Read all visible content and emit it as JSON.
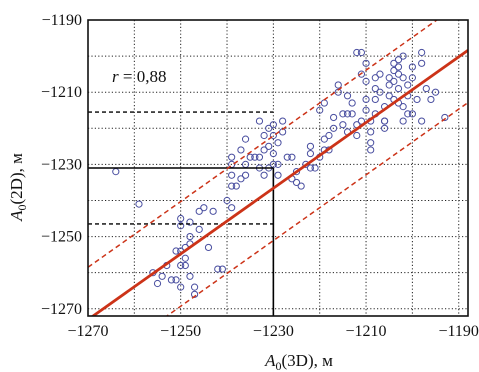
{
  "chart_data": {
    "type": "scatter",
    "title": "",
    "xlabel": {
      "main": "A",
      "sub": "0",
      "rest": "(3D), м"
    },
    "ylabel": {
      "main": "A",
      "sub": "0",
      "rest": "(2D), м"
    },
    "xlim": [
      -1270,
      -1188
    ],
    "ylim": [
      -1272,
      -1190
    ],
    "xticks": [
      -1270,
      -1250,
      -1230,
      -1210,
      -1190
    ],
    "yticks": [
      -1190,
      -1210,
      -1230,
      -1250,
      -1270
    ],
    "xtick_labels": [
      "−1270",
      "−1250",
      "−1230",
      "−1210",
      "−1190"
    ],
    "ytick_labels": [
      "−1190",
      "−1210",
      "−1230",
      "−1250",
      "−1270"
    ],
    "grid": "dotted",
    "annotation": {
      "symbol": "r",
      "text": " = 0,88"
    },
    "colors": {
      "points": "#4a4fa0",
      "fit": "#cc3318",
      "band": "#cc3318",
      "grid": "#222222",
      "guides": "#000000"
    },
    "fit_line": {
      "slope": 0.91,
      "intercept": -117.3
    },
    "confidence_band": {
      "offset": 14.5
    },
    "guide_lines": {
      "solid": {
        "x": -1230,
        "y": -1231
      },
      "dashed_y": [
        -1215.5,
        -1246.5
      ]
    },
    "points": [
      [
        -1264,
        -1232
      ],
      [
        -1259,
        -1241
      ],
      [
        -1256,
        -1260
      ],
      [
        -1254,
        -1261
      ],
      [
        -1252,
        -1262
      ],
      [
        -1251,
        -1262
      ],
      [
        -1250,
        -1254
      ],
      [
        -1250,
        -1258
      ],
      [
        -1250,
        -1264
      ],
      [
        -1251,
        -1254
      ],
      [
        -1250,
        -1247
      ],
      [
        -1250,
        -1245
      ],
      [
        -1249,
        -1253
      ],
      [
        -1249,
        -1256
      ],
      [
        -1249,
        -1258
      ],
      [
        -1248,
        -1246
      ],
      [
        -1248,
        -1250
      ],
      [
        -1248,
        -1252
      ],
      [
        -1248,
        -1261
      ],
      [
        -1247,
        -1264
      ],
      [
        -1247,
        -1266
      ],
      [
        -1246,
        -1248
      ],
      [
        -1245,
        -1242
      ],
      [
        -1246,
        -1243
      ],
      [
        -1243,
        -1243
      ],
      [
        -1242,
        -1259
      ],
      [
        -1241,
        -1259
      ],
      [
        -1240,
        -1240
      ],
      [
        -1239,
        -1242
      ],
      [
        -1239,
        -1236
      ],
      [
        -1239,
        -1233
      ],
      [
        -1239,
        -1230
      ],
      [
        -1239,
        -1228
      ],
      [
        -1238,
        -1236
      ],
      [
        -1237,
        -1226
      ],
      [
        -1237,
        -1234
      ],
      [
        -1236,
        -1230
      ],
      [
        -1236,
        -1233
      ],
      [
        -1235,
        -1228
      ],
      [
        -1234,
        -1228
      ],
      [
        -1233,
        -1228
      ],
      [
        -1233,
        -1231
      ],
      [
        -1232,
        -1233
      ],
      [
        -1232,
        -1226
      ],
      [
        -1232,
        -1222
      ],
      [
        -1231,
        -1231
      ],
      [
        -1231,
        -1225
      ],
      [
        -1231,
        -1220
      ],
      [
        -1230,
        -1219
      ],
      [
        -1230,
        -1222
      ],
      [
        -1230,
        -1227
      ],
      [
        -1230,
        -1230
      ],
      [
        -1229,
        -1230
      ],
      [
        -1229,
        -1233
      ],
      [
        -1229,
        -1224
      ],
      [
        -1228,
        -1218
      ],
      [
        -1228,
        -1221
      ],
      [
        -1227,
        -1228
      ],
      [
        -1226,
        -1228
      ],
      [
        -1225,
        -1232
      ],
      [
        -1225,
        -1235
      ],
      [
        -1224,
        -1236
      ],
      [
        -1223,
        -1230
      ],
      [
        -1222,
        -1225
      ],
      [
        -1222,
        -1227
      ],
      [
        -1221,
        -1231
      ],
      [
        -1220,
        -1228
      ],
      [
        -1220,
        -1215
      ],
      [
        -1219,
        -1226
      ],
      [
        -1219,
        -1223
      ],
      [
        -1218,
        -1226
      ],
      [
        -1218,
        -1222
      ],
      [
        -1217,
        -1220
      ],
      [
        -1217,
        -1217
      ],
      [
        -1216,
        -1208
      ],
      [
        -1216,
        -1210
      ],
      [
        -1215,
        -1216
      ],
      [
        -1215,
        -1219
      ],
      [
        -1214,
        -1216
      ],
      [
        -1214,
        -1211
      ],
      [
        -1214,
        -1221
      ],
      [
        -1213,
        -1213
      ],
      [
        -1213,
        -1216
      ],
      [
        -1212,
        -1219
      ],
      [
        -1212,
        -1222
      ],
      [
        -1211,
        -1218
      ],
      [
        -1211,
        -1205
      ],
      [
        -1211,
        -1199
      ],
      [
        -1210,
        -1202
      ],
      [
        -1210,
        -1207
      ],
      [
        -1210,
        -1212
      ],
      [
        -1210,
        -1215
      ],
      [
        -1209,
        -1218
      ],
      [
        -1209,
        -1221
      ],
      [
        -1209,
        -1224
      ],
      [
        -1209,
        -1226
      ],
      [
        -1208,
        -1206
      ],
      [
        -1208,
        -1209
      ],
      [
        -1208,
        -1212
      ],
      [
        -1208,
        -1216
      ],
      [
        -1207,
        -1205
      ],
      [
        -1207,
        -1210
      ],
      [
        -1206,
        -1214
      ],
      [
        -1206,
        -1218
      ],
      [
        -1206,
        -1220
      ],
      [
        -1205,
        -1206
      ],
      [
        -1205,
        -1208
      ],
      [
        -1205,
        -1211
      ],
      [
        -1204,
        -1202
      ],
      [
        -1204,
        -1204
      ],
      [
        -1204,
        -1207
      ],
      [
        -1204,
        -1212
      ],
      [
        -1203,
        -1201
      ],
      [
        -1203,
        -1203
      ],
      [
        -1203,
        -1205
      ],
      [
        -1203,
        -1209
      ],
      [
        -1203,
        -1213
      ],
      [
        -1202,
        -1200
      ],
      [
        -1202,
        -1206
      ],
      [
        -1202,
        -1214
      ],
      [
        -1202,
        -1218
      ],
      [
        -1201,
        -1208
      ],
      [
        -1201,
        -1211
      ],
      [
        -1201,
        -1216
      ],
      [
        -1200,
        -1203
      ],
      [
        -1200,
        -1206
      ],
      [
        -1200,
        -1216
      ],
      [
        -1199,
        -1212
      ],
      [
        -1198,
        -1199
      ],
      [
        -1198,
        -1202
      ],
      [
        -1198,
        -1218
      ],
      [
        -1197,
        -1209
      ],
      [
        -1196,
        -1212
      ],
      [
        -1195,
        -1210
      ],
      [
        -1193,
        -1217
      ],
      [
        -1212,
        -1199
      ],
      [
        -1206,
        -1218
      ],
      [
        -1219,
        -1213
      ],
      [
        -1222,
        -1231
      ],
      [
        -1226,
        -1234
      ],
      [
        -1236,
        -1223
      ],
      [
        -1233,
        -1218
      ],
      [
        -1244,
        -1253
      ],
      [
        -1255,
        -1263
      ],
      [
        -1253,
        -1258
      ]
    ]
  }
}
